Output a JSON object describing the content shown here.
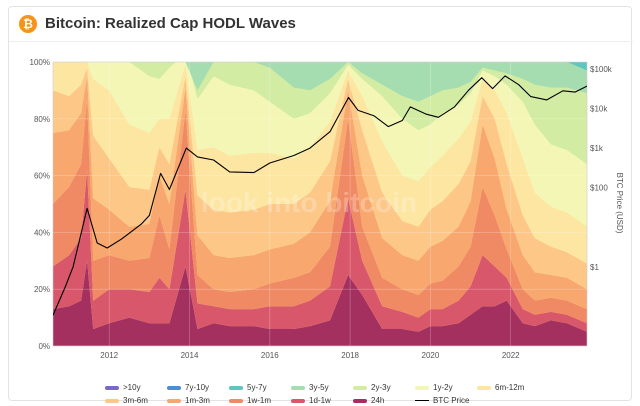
{
  "header": {
    "title": "Bitcoin: Realized Cap HODL Waves",
    "icon": "bitcoin-logo-icon",
    "icon_glyph": "₿"
  },
  "watermark": "look into bitcoin",
  "chart_data": {
    "type": "area",
    "stacked": true,
    "x_unit": "year",
    "xlim": [
      2010.6,
      2023.9
    ],
    "x_ticks": [
      "2012",
      "2014",
      "2016",
      "2018",
      "2020",
      "2022"
    ],
    "ylim": [
      0,
      100
    ],
    "y_ticks_left": [
      "0%",
      "20%",
      "40%",
      "60%",
      "80%",
      "100%"
    ],
    "y_scale_right": "log",
    "ylim_right": [
      0.01,
      150000
    ],
    "y_ticks_right": [
      "$1",
      "$100",
      "$1k",
      "$10k",
      "$100k"
    ],
    "ylabel_right": "BTC Price (USD)",
    "grid": true,
    "legend_position": "bottom",
    "x": [
      2010.6,
      2011.0,
      2011.3,
      2011.45,
      2011.6,
      2012.0,
      2012.5,
      2013.0,
      2013.25,
      2013.5,
      2013.9,
      2014.2,
      2014.6,
      2015.0,
      2015.6,
      2016.0,
      2016.6,
      2017.0,
      2017.5,
      2017.95,
      2018.3,
      2018.8,
      2019.3,
      2019.7,
      2020.0,
      2020.3,
      2020.7,
      2021.0,
      2021.3,
      2021.6,
      2021.9,
      2022.3,
      2022.6,
      2023.0,
      2023.4,
      2023.9
    ],
    "series": [
      {
        "name": ">10y",
        "color": "#7b69c7",
        "values": [
          0,
          0,
          0,
          0,
          0,
          0,
          0,
          0,
          0,
          0,
          0,
          0,
          0,
          0,
          0,
          0,
          0,
          0,
          0,
          0,
          0,
          0,
          0,
          0,
          0,
          0,
          0,
          0,
          0,
          0,
          0,
          0,
          0,
          0,
          0,
          0
        ]
      },
      {
        "name": "7y-10y",
        "color": "#4a8fd1",
        "values": [
          0,
          0,
          0,
          0,
          0,
          0,
          0,
          0,
          0,
          0,
          0,
          0,
          0,
          0,
          0,
          0,
          0,
          0,
          0,
          0,
          0,
          0,
          0,
          0,
          0,
          0,
          0,
          0,
          0,
          0,
          0,
          0,
          0,
          0,
          0,
          0
        ]
      },
      {
        "name": "5y-7y",
        "color": "#5ec6c0",
        "values": [
          0,
          0,
          0,
          0,
          0,
          0,
          0,
          0,
          0,
          0,
          0,
          0,
          0,
          0,
          0,
          0,
          0,
          0,
          0,
          0,
          0,
          0,
          0,
          0,
          0,
          0,
          0,
          0,
          0,
          0,
          0,
          0,
          0,
          0,
          1,
          3
        ]
      },
      {
        "name": "3y-5y",
        "color": "#a6ddb0",
        "values": [
          0,
          0,
          0,
          0,
          0,
          0,
          0,
          0,
          0,
          0,
          0,
          0,
          0,
          0,
          0,
          2,
          9,
          10,
          6,
          2,
          4,
          8,
          12,
          14,
          12,
          10,
          9,
          7,
          2,
          3,
          4,
          6,
          8,
          9,
          9,
          8
        ]
      },
      {
        "name": "2y-3y",
        "color": "#d2eca3",
        "values": [
          0,
          0,
          0,
          0,
          0,
          0,
          2,
          5,
          6,
          2,
          1,
          3,
          5,
          8,
          10,
          12,
          11,
          8,
          5,
          1,
          2,
          4,
          8,
          10,
          10,
          8,
          6,
          4,
          1,
          2,
          4,
          8,
          14,
          20,
          22,
          25
        ]
      },
      {
        "name": "1y-2y",
        "color": "#f3f6b5",
        "values": [
          0,
          0,
          0,
          0,
          6,
          10,
          22,
          20,
          14,
          18,
          4,
          18,
          25,
          25,
          22,
          18,
          14,
          12,
          10,
          2,
          6,
          16,
          20,
          18,
          15,
          15,
          12,
          10,
          3,
          5,
          10,
          20,
          24,
          22,
          22,
          22
        ]
      },
      {
        "name": "6m-12m",
        "color": "#fde6a2",
        "values": [
          10,
          12,
          8,
          2,
          20,
          24,
          22,
          20,
          10,
          16,
          4,
          16,
          22,
          20,
          20,
          18,
          16,
          16,
          14,
          3,
          12,
          18,
          16,
          16,
          15,
          16,
          16,
          14,
          6,
          10,
          18,
          20,
          16,
          14,
          14,
          13
        ]
      },
      {
        "name": "3m-6m",
        "color": "#fcc787",
        "values": [
          15,
          12,
          10,
          3,
          22,
          18,
          14,
          12,
          10,
          14,
          4,
          14,
          16,
          16,
          16,
          16,
          14,
          14,
          14,
          4,
          16,
          16,
          12,
          12,
          13,
          14,
          15,
          14,
          10,
          14,
          16,
          14,
          12,
          10,
          9,
          9
        ]
      },
      {
        "name": "1m-3m",
        "color": "#f8a76e",
        "values": [
          25,
          20,
          18,
          8,
          22,
          16,
          12,
          12,
          14,
          16,
          8,
          14,
          12,
          12,
          12,
          12,
          12,
          14,
          16,
          10,
          18,
          14,
          12,
          12,
          13,
          14,
          14,
          16,
          22,
          20,
          14,
          12,
          10,
          8,
          8,
          7
        ]
      },
      {
        "name": "1w-1m",
        "color": "#ef8a64",
        "values": [
          22,
          24,
          26,
          25,
          14,
          12,
          10,
          12,
          22,
          14,
          28,
          10,
          6,
          6,
          7,
          8,
          10,
          10,
          14,
          28,
          12,
          10,
          8,
          8,
          9,
          10,
          12,
          14,
          24,
          18,
          10,
          7,
          5,
          5,
          5,
          5
        ]
      },
      {
        "name": "1d-1w",
        "color": "#d9576b",
        "values": [
          15,
          18,
          22,
          32,
          10,
          12,
          10,
          11,
          16,
          12,
          27,
          9,
          6,
          6,
          6,
          8,
          8,
          9,
          12,
          27,
          12,
          8,
          6,
          5,
          6,
          6,
          8,
          10,
          18,
          14,
          8,
          5,
          4,
          3,
          3,
          3
        ]
      },
      {
        "name": "24h",
        "color": "#a4305f",
        "values": [
          13,
          14,
          16,
          30,
          6,
          8,
          10,
          8,
          8,
          8,
          28,
          6,
          8,
          7,
          7,
          6,
          6,
          7,
          9,
          25,
          18,
          6,
          6,
          5,
          7,
          7,
          8,
          11,
          14,
          14,
          16,
          8,
          7,
          9,
          8,
          5
        ]
      }
    ],
    "price_series": {
      "name": "BTC Price",
      "color": "#000000",
      "x": [
        2010.6,
        2010.9,
        2011.1,
        2011.45,
        2011.7,
        2011.95,
        2012.3,
        2012.8,
        2013.0,
        2013.28,
        2013.5,
        2013.92,
        2014.2,
        2014.6,
        2015.0,
        2015.6,
        2016.0,
        2016.6,
        2017.0,
        2017.5,
        2017.96,
        2018.2,
        2018.6,
        2018.95,
        2019.3,
        2019.5,
        2019.9,
        2020.2,
        2020.6,
        2020.95,
        2021.28,
        2021.55,
        2021.86,
        2022.2,
        2022.5,
        2022.9,
        2023.3,
        2023.6,
        2023.9
      ],
      "values": [
        0.06,
        0.3,
        1,
        30,
        4,
        3,
        5,
        12,
        20,
        230,
        90,
        1000,
        600,
        500,
        250,
        240,
        420,
        650,
        1000,
        2600,
        19000,
        9000,
        6500,
        3500,
        5000,
        11000,
        7200,
        6000,
        11000,
        29000,
        60000,
        32000,
        67000,
        40000,
        20000,
        16500,
        28000,
        26000,
        37000
      ]
    }
  },
  "legend": {
    "items": [
      {
        "label": ">10y",
        "color": "#7b69c7"
      },
      {
        "label": "7y-10y",
        "color": "#4a8fd1"
      },
      {
        "label": "5y-7y",
        "color": "#5ec6c0"
      },
      {
        "label": "3y-5y",
        "color": "#a6ddb0"
      },
      {
        "label": "2y-3y",
        "color": "#d2eca3"
      },
      {
        "label": "1y-2y",
        "color": "#f3f6b5"
      },
      {
        "label": "6m-12m",
        "color": "#fde6a2"
      },
      {
        "label": "3m-6m",
        "color": "#fcc787"
      },
      {
        "label": "1m-3m",
        "color": "#f8a76e"
      },
      {
        "label": "1w-1m",
        "color": "#ef8a64"
      },
      {
        "label": "1d-1w",
        "color": "#d9576b"
      },
      {
        "label": "24h",
        "color": "#a4305f"
      }
    ],
    "price_label": "BTC Price"
  }
}
